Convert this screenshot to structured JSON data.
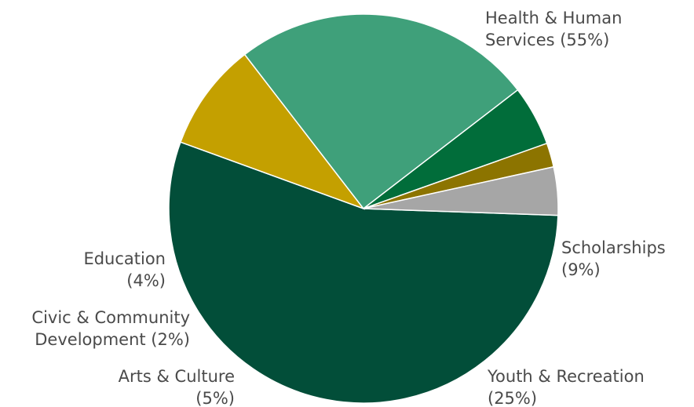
{
  "chart_data": {
    "type": "pie",
    "title": "",
    "slices": [
      {
        "name": "Health & Human Services",
        "value": 55,
        "line1": "Health & Human",
        "line2": "Services (55%)",
        "color": "#024e39"
      },
      {
        "name": "Scholarships",
        "value": 9,
        "line1": "Scholarships",
        "line2": "(9%)",
        "color": "#c4a000"
      },
      {
        "name": "Youth & Recreation",
        "value": 25,
        "line1": "Youth & Recreation",
        "line2": "(25%)",
        "color": "#3fa07a"
      },
      {
        "name": "Arts & Culture",
        "value": 5,
        "line1": "Arts & Culture",
        "line2": "(5%)",
        "color": "#016d3a"
      },
      {
        "name": "Civic & Community Development",
        "value": 2,
        "line1": "Civic & Community",
        "line2": "Development (2%)",
        "color": "#8c7400"
      },
      {
        "name": "Education",
        "value": 4,
        "line1": "Education",
        "line2": "(4%)",
        "color": "#a6a6a6"
      }
    ],
    "legend": "none"
  }
}
